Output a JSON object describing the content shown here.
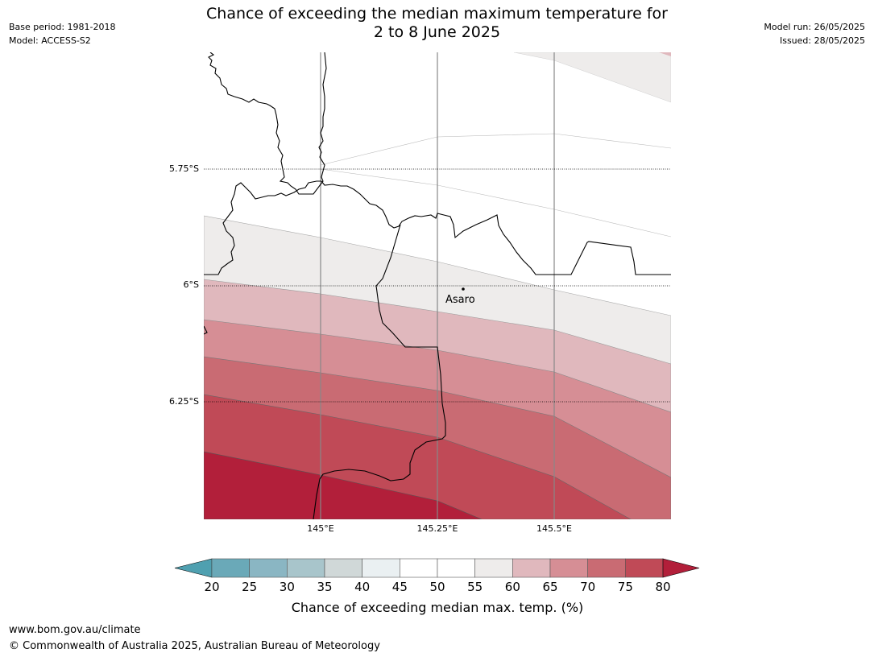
{
  "meta": {
    "base_period": "Base period: 1981-2018",
    "model": "Model: ACCESS-S2",
    "model_run": "Model run: 26/05/2025",
    "issued": "Issued: 28/05/2025"
  },
  "title": {
    "line1": "Chance of exceeding the median maximum temperature for",
    "line2": "2 to 8 June 2025"
  },
  "map": {
    "lat_labels": [
      "5.75°S",
      "6°S",
      "6.25°S"
    ],
    "lon_labels": [
      "145°E",
      "145.25°E",
      "145.5°E"
    ],
    "place": {
      "name": "Asaro"
    },
    "band_colors": [
      "#ffffff",
      "#eeeceb",
      "#e0b8bd",
      "#d68e95",
      "#c96b73",
      "#c04a57",
      "#b21f3a"
    ]
  },
  "colorbar": {
    "ticks": [
      "20",
      "25",
      "30",
      "35",
      "40",
      "45",
      "50",
      "55",
      "60",
      "65",
      "70",
      "75",
      "80"
    ],
    "colors": [
      "#6aa9b8",
      "#8ab6c3",
      "#a8c5cb",
      "#d0d8d8",
      "#eaf0f2",
      "#ffffff",
      "#ffffff",
      "#eeeceb",
      "#e0b8bd",
      "#d68e95",
      "#c96b73",
      "#c04a57"
    ],
    "under_color": "#4fa0b0",
    "over_color": "#b21f3a",
    "label": "Chance of exceeding median max. temp. (%)"
  },
  "footer": {
    "url": "www.bom.gov.au/climate",
    "copyright": "© Commonwealth of Australia 2025, Australian Bureau of Meteorology"
  }
}
